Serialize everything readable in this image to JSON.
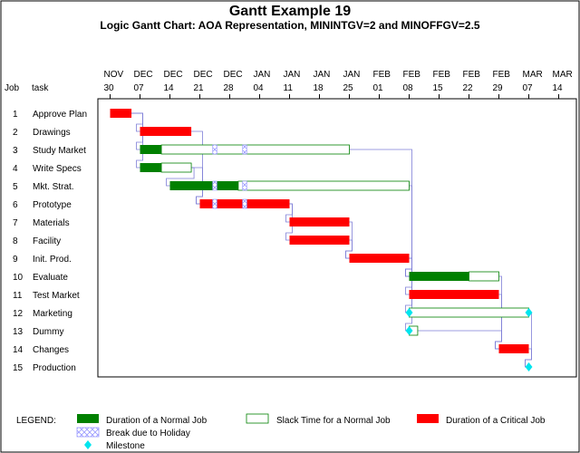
{
  "chart_data": {
    "type": "gantt",
    "title": "Gantt Example 19",
    "subtitle": "Logic Gantt Chart: AOA Representation, MININTGV=2 and MINOFFGV=2.5",
    "col_headers": {
      "job": "Job",
      "task": "task"
    },
    "x_ticks": [
      {
        "month": "NOV",
        "day": "30",
        "offset": 0
      },
      {
        "month": "DEC",
        "day": "07",
        "offset": 7
      },
      {
        "month": "DEC",
        "day": "14",
        "offset": 14
      },
      {
        "month": "DEC",
        "day": "21",
        "offset": 21
      },
      {
        "month": "DEC",
        "day": "28",
        "offset": 28
      },
      {
        "month": "JAN",
        "day": "04",
        "offset": 35
      },
      {
        "month": "JAN",
        "day": "11",
        "offset": 42
      },
      {
        "month": "JAN",
        "day": "18",
        "offset": 49
      },
      {
        "month": "JAN",
        "day": "25",
        "offset": 56
      },
      {
        "month": "FEB",
        "day": "01",
        "offset": 63
      },
      {
        "month": "FEB",
        "day": "08",
        "offset": 70
      },
      {
        "month": "FEB",
        "day": "15",
        "offset": 77
      },
      {
        "month": "FEB",
        "day": "22",
        "offset": 84
      },
      {
        "month": "FEB",
        "day": "29",
        "offset": 91
      },
      {
        "month": "MAR",
        "day": "07",
        "offset": 98
      },
      {
        "month": "MAR",
        "day": "14",
        "offset": 105
      }
    ],
    "x_range": [
      -1,
      107
    ],
    "holidays": [
      [
        24,
        25
      ],
      [
        31,
        32
      ]
    ],
    "tasks": [
      {
        "job": "1",
        "name": "Approve Plan",
        "critical": true,
        "start": 0,
        "finish": 5
      },
      {
        "job": "2",
        "name": "Drawings",
        "critical": true,
        "start": 7,
        "finish": 19
      },
      {
        "job": "3",
        "name": "Study Market",
        "critical": false,
        "start": 7,
        "finish": 12,
        "slack_end": 56
      },
      {
        "job": "4",
        "name": "Write Specs",
        "critical": false,
        "start": 7,
        "finish": 12,
        "slack_end": 19
      },
      {
        "job": "5",
        "name": "Mkt. Strat.",
        "critical": false,
        "start": 14,
        "finish": 30,
        "slack_end": 70
      },
      {
        "job": "6",
        "name": "Prototype",
        "critical": true,
        "start": 21,
        "finish": 42
      },
      {
        "job": "7",
        "name": "Materials",
        "critical": true,
        "start": 42,
        "finish": 56
      },
      {
        "job": "8",
        "name": "Facility",
        "critical": true,
        "start": 42,
        "finish": 56
      },
      {
        "job": "9",
        "name": "Init. Prod.",
        "critical": true,
        "start": 56,
        "finish": 70
      },
      {
        "job": "10",
        "name": "Evaluate",
        "critical": false,
        "start": 70,
        "finish": 84,
        "slack_end": 91
      },
      {
        "job": "11",
        "name": "Test Market",
        "critical": true,
        "start": 70,
        "finish": 91
      },
      {
        "job": "12",
        "name": "Marketing",
        "critical": false,
        "start": 70,
        "finish": 70,
        "slack_end": 98,
        "milestone": true,
        "milestone2": 98
      },
      {
        "job": "13",
        "name": "Dummy",
        "critical": false,
        "start": 70,
        "finish": 70,
        "slack_end": 72,
        "milestone": true
      },
      {
        "job": "14",
        "name": "Changes",
        "critical": true,
        "start": 91,
        "finish": 98
      },
      {
        "job": "15",
        "name": "Production",
        "critical": true,
        "start": 98,
        "finish": 98,
        "milestone": true
      }
    ],
    "legend": {
      "heading": "LEGEND:",
      "normal": "Duration of a Normal Job",
      "slack": "Slack Time for a Normal Job",
      "critical": "Duration of a Critical Job",
      "holiday": "Break due to Holiday",
      "milestone": "Milestone"
    },
    "colors": {
      "normal": "#008000",
      "critical": "#ff0000",
      "slack": "#ffffff",
      "slack_border": "#008000",
      "holiday": "#9999ff",
      "link": "#7f7fd8",
      "milestone": "#00e5ee",
      "frame": "#000000"
    }
  }
}
